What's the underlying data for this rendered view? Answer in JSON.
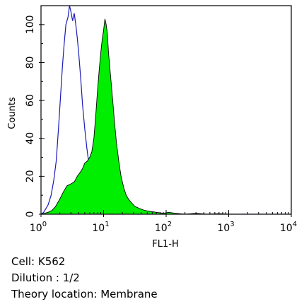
{
  "chart_data": {
    "type": "area",
    "xlabel": "FL1-H",
    "ylabel": "Counts",
    "x_scale": "log",
    "xlim": [
      1,
      10000
    ],
    "ylim": [
      0,
      110
    ],
    "grid": false,
    "x_ticks": [
      {
        "base": "10",
        "exp": "0"
      },
      {
        "base": "10",
        "exp": "1"
      },
      {
        "base": "10",
        "exp": "2"
      },
      {
        "base": "10",
        "exp": "3"
      },
      {
        "base": "10",
        "exp": "4"
      }
    ],
    "y_ticks": [
      "0",
      "20",
      "40",
      "60",
      "80",
      "100"
    ],
    "series": [
      {
        "role": "control",
        "style": "outline",
        "color": "#1a1ab8",
        "points": [
          [
            1.0,
            0
          ],
          [
            1.1,
            1
          ],
          [
            1.2,
            3
          ],
          [
            1.3,
            5
          ],
          [
            1.45,
            10
          ],
          [
            1.6,
            18
          ],
          [
            1.75,
            28
          ],
          [
            1.9,
            45
          ],
          [
            2.05,
            62
          ],
          [
            2.2,
            78
          ],
          [
            2.35,
            90
          ],
          [
            2.5,
            100
          ],
          [
            2.7,
            104
          ],
          [
            2.85,
            110
          ],
          [
            3.0,
            107
          ],
          [
            3.2,
            102
          ],
          [
            3.4,
            106
          ],
          [
            3.6,
            100
          ],
          [
            3.8,
            93
          ],
          [
            4.0,
            85
          ],
          [
            4.3,
            72
          ],
          [
            4.6,
            58
          ],
          [
            5.0,
            45
          ],
          [
            5.4,
            35
          ],
          [
            5.8,
            27
          ],
          [
            6.3,
            21
          ],
          [
            6.8,
            16
          ],
          [
            7.5,
            12
          ],
          [
            8.5,
            8
          ],
          [
            10,
            5
          ],
          [
            12,
            3
          ],
          [
            15,
            1.5
          ],
          [
            20,
            0.5
          ],
          [
            30,
            0
          ],
          [
            10000,
            0
          ]
        ]
      },
      {
        "role": "sample",
        "style": "filled",
        "color": "#00ee00",
        "points": [
          [
            1.0,
            0
          ],
          [
            1.3,
            1
          ],
          [
            1.5,
            2
          ],
          [
            1.7,
            4
          ],
          [
            2.0,
            8
          ],
          [
            2.3,
            12
          ],
          [
            2.6,
            15
          ],
          [
            3.0,
            16
          ],
          [
            3.4,
            17
          ],
          [
            3.8,
            20
          ],
          [
            4.2,
            22
          ],
          [
            4.6,
            24
          ],
          [
            5.0,
            27
          ],
          [
            5.5,
            28
          ],
          [
            6.0,
            30
          ],
          [
            6.5,
            33
          ],
          [
            7.0,
            40
          ],
          [
            7.5,
            52
          ],
          [
            8.0,
            65
          ],
          [
            8.5,
            76
          ],
          [
            9.0,
            85
          ],
          [
            9.5,
            92
          ],
          [
            10.0,
            97
          ],
          [
            10.5,
            103
          ],
          [
            11.0,
            100
          ],
          [
            11.5,
            95
          ],
          [
            12.0,
            85
          ],
          [
            13.0,
            72
          ],
          [
            14.0,
            60
          ],
          [
            15.0,
            48
          ],
          [
            16.0,
            38
          ],
          [
            17.5,
            28
          ],
          [
            19.0,
            20
          ],
          [
            21.0,
            14
          ],
          [
            23.0,
            10
          ],
          [
            25.0,
            8
          ],
          [
            28.0,
            6
          ],
          [
            32.0,
            4
          ],
          [
            38.0,
            3
          ],
          [
            45.0,
            2
          ],
          [
            55.0,
            1.5
          ],
          [
            70.0,
            1
          ],
          [
            90.0,
            0.5
          ],
          [
            110.0,
            1
          ],
          [
            140.0,
            0.5
          ],
          [
            200.0,
            0
          ],
          [
            300.0,
            0.5
          ],
          [
            450.0,
            0
          ],
          [
            700.0,
            0.3
          ],
          [
            1000.0,
            0
          ],
          [
            10000,
            0
          ]
        ]
      }
    ]
  },
  "caption": {
    "cell": "Cell: K562",
    "dilution": "Dilution : 1/2",
    "location": "Theory location: Membrane"
  }
}
